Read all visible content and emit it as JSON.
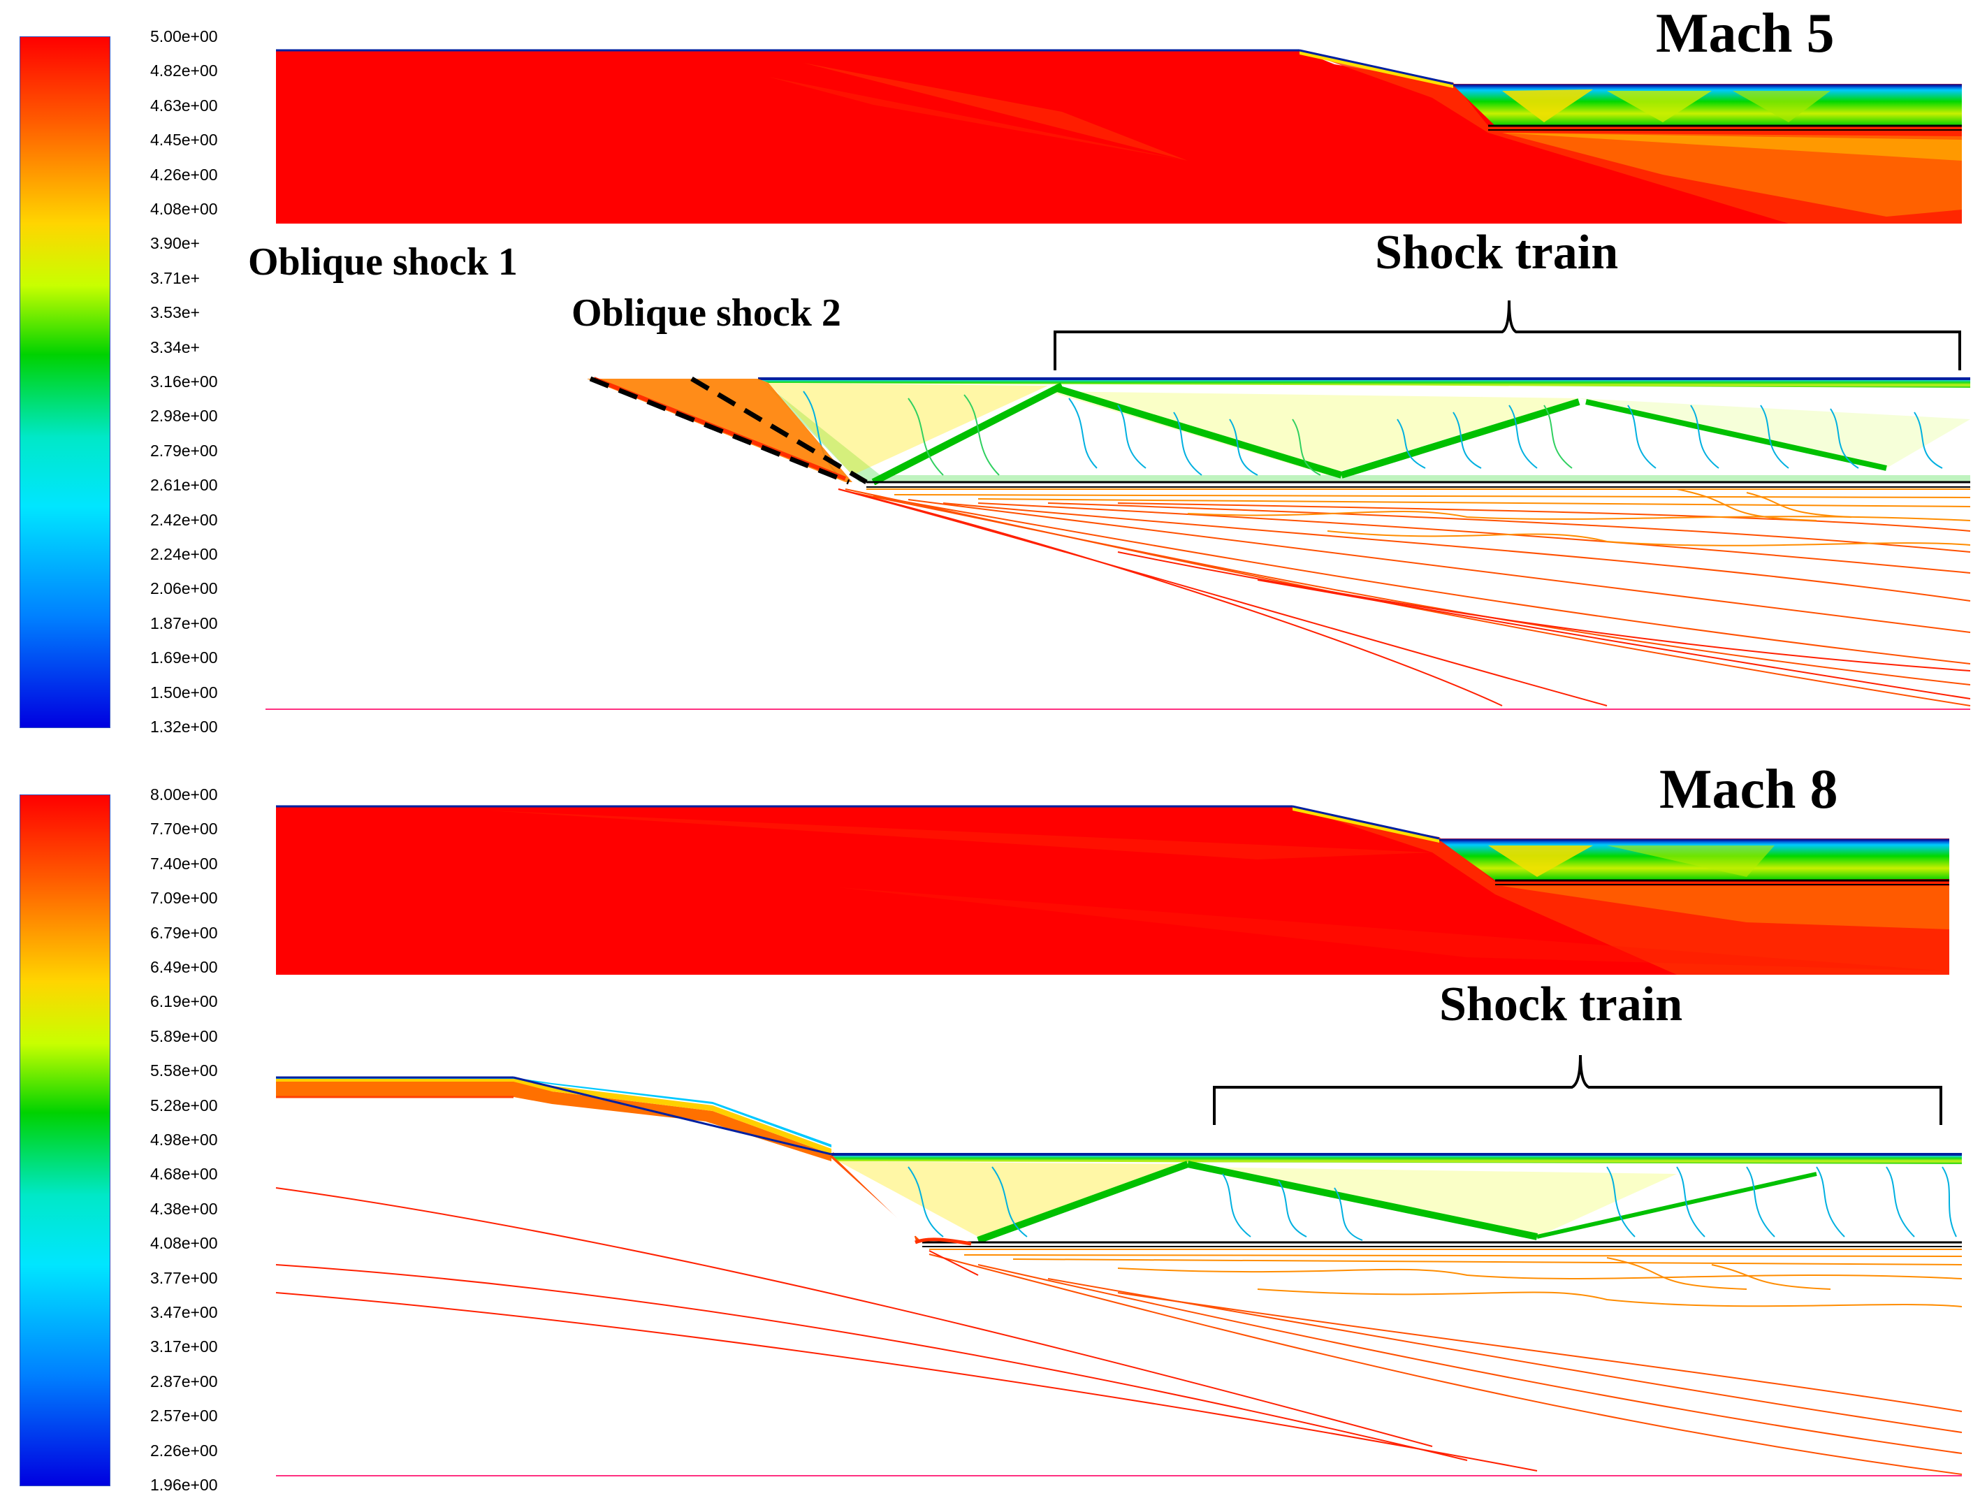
{
  "panels": [
    {
      "title": "Mach 5",
      "legend_values": [
        "5.00e+00",
        "4.82e+00",
        "4.63e+00",
        "4.45e+00",
        "4.26e+00",
        "4.08e+00",
        "3.90e+",
        "3.71e+",
        "3.53e+",
        "3.34e+",
        "3.16e+00",
        "2.98e+00",
        "2.79e+00",
        "2.61e+00",
        "2.42e+00",
        "2.24e+00",
        "2.06e+00",
        "1.87e+00",
        "1.69e+00",
        "1.50e+00",
        "1.32e+00"
      ],
      "annotations": {
        "oblique_shock_1": "Oblique shock 1",
        "oblique_shock_2": "Oblique shock 2",
        "shock_train": "Shock train"
      }
    },
    {
      "title": "Mach 8",
      "legend_values": [
        "8.00e+00",
        "7.70e+00",
        "7.40e+00",
        "7.09e+00",
        "6.79e+00",
        "6.49e+00",
        "6.19e+00",
        "5.89e+00",
        "5.58e+00",
        "5.28e+00",
        "4.98e+00",
        "4.68e+00",
        "4.38e+00",
        "4.08e+00",
        "3.77e+00",
        "3.47e+00",
        "3.17e+00",
        "2.87e+00",
        "2.57e+00",
        "2.26e+00",
        "1.96e+00"
      ],
      "annotations": {
        "shock_train": "Shock train"
      }
    }
  ],
  "colormap": [
    "#ff0000",
    "#ff6a00",
    "#ffd000",
    "#a8ff00",
    "#00d800",
    "#00e8e0",
    "#0090ff",
    "#0000e0"
  ]
}
